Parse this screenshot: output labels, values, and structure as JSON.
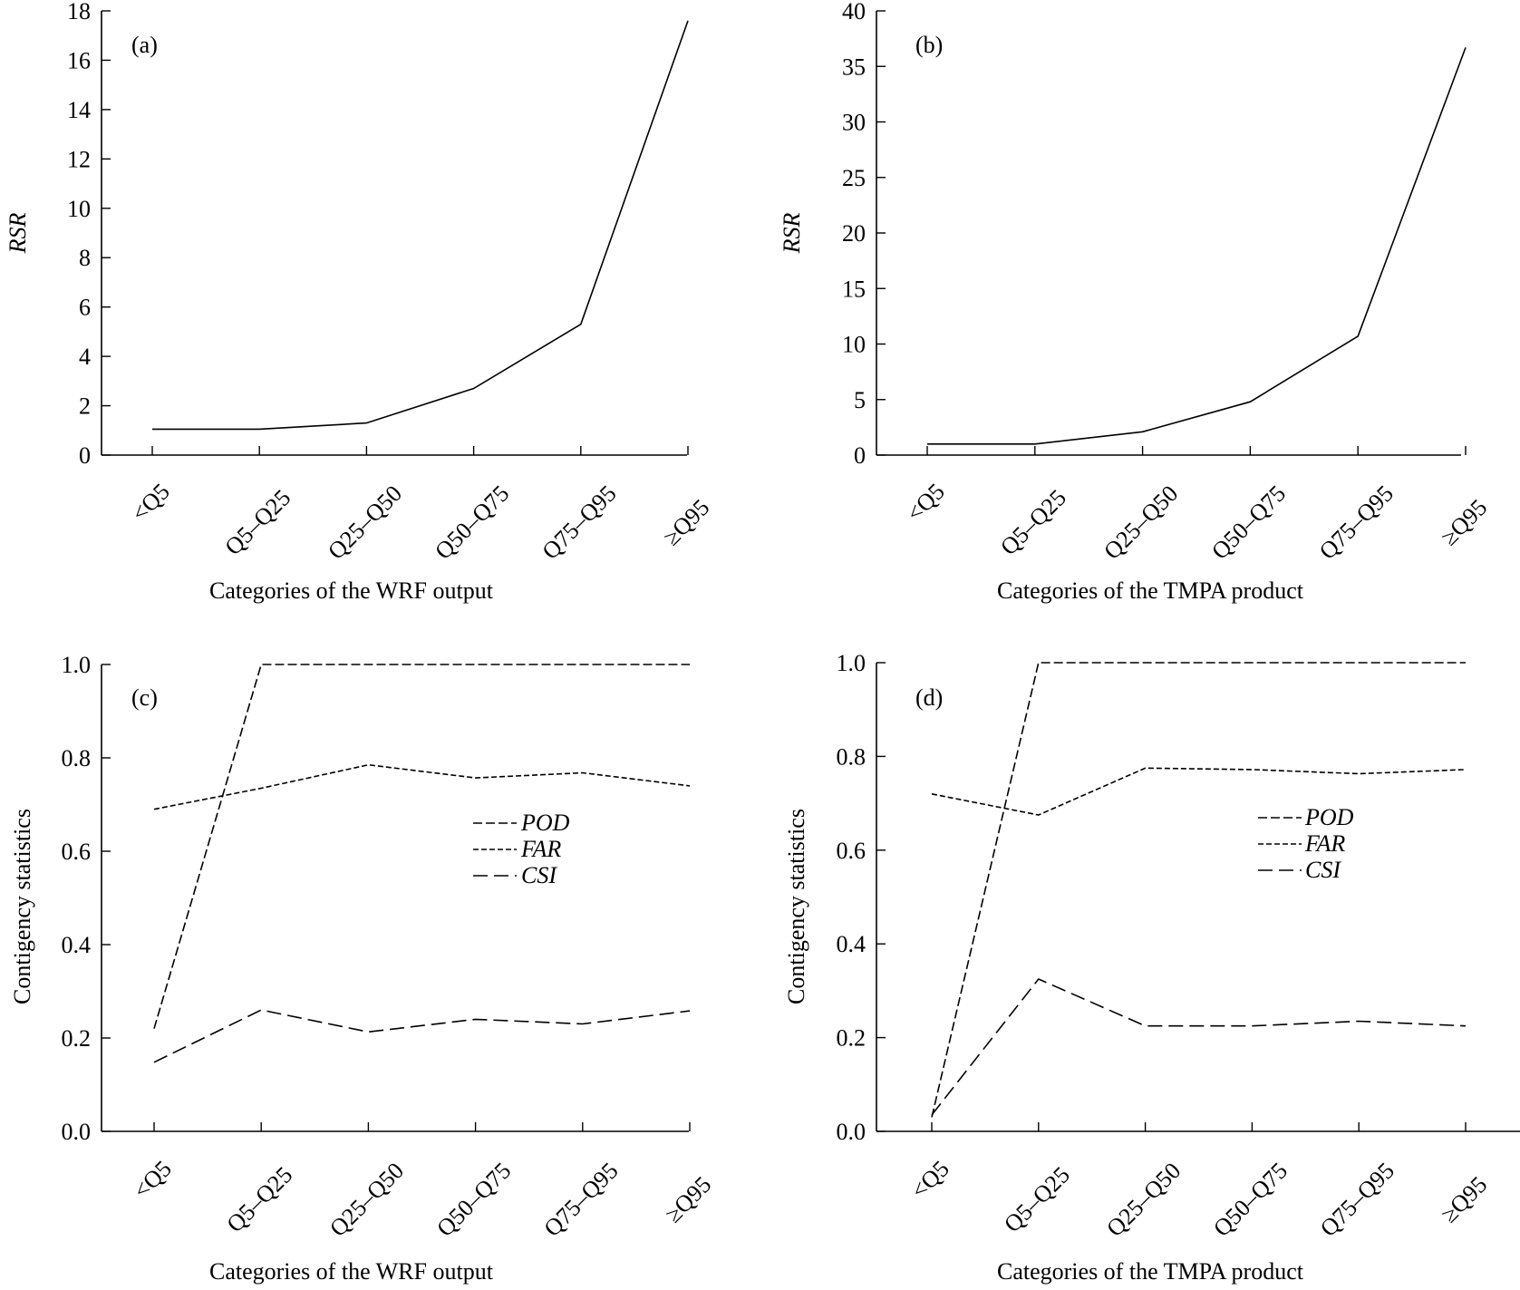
{
  "chart_data": [
    {
      "panel_label": "(a)",
      "type": "line",
      "categories": [
        "<Q5",
        "Q5–Q25",
        "Q25–Q50",
        "Q50–Q75",
        "Q75–Q95",
        "≥Q95"
      ],
      "xlabel": "Categories of the WRF output",
      "ylabel": "RSR",
      "ylim": [
        0,
        18
      ],
      "yticks": [
        "0",
        "2",
        "4",
        "6",
        "8",
        "10",
        "12",
        "14",
        "16",
        "18"
      ],
      "series": [
        {
          "values": [
            1.05,
            1.05,
            1.3,
            2.7,
            5.3,
            17.6
          ],
          "dash": "solid"
        }
      ]
    },
    {
      "panel_label": "(b)",
      "type": "line",
      "categories": [
        "<Q5",
        "Q5–Q25",
        "Q25–Q50",
        "Q50–Q75",
        "Q75–Q95",
        "≥Q95"
      ],
      "xlabel": "Categories of the TMPA product",
      "ylabel": "RSR",
      "ylim": [
        0,
        40
      ],
      "yticks": [
        "0",
        "5",
        "10",
        "15",
        "20",
        "25",
        "30",
        "35",
        "40"
      ],
      "series": [
        {
          "values": [
            1.0,
            1.0,
            2.1,
            4.8,
            10.7,
            36.7
          ],
          "dash": "solid"
        }
      ]
    },
    {
      "panel_label": "(c)",
      "type": "line",
      "categories": [
        "<Q5",
        "Q5–Q25",
        "Q25–Q50",
        "Q50–Q75",
        "Q75–Q95",
        "≥Q95"
      ],
      "xlabel": "Categories of the WRF output",
      "ylabel": "Contigency statistics",
      "ylim": [
        0,
        1
      ],
      "yticks": [
        "0.0",
        "0.2",
        "0.4",
        "0.6",
        "0.8",
        "1.0"
      ],
      "series": [
        {
          "name": "POD",
          "values": [
            0.22,
            1.0,
            1.0,
            1.0,
            1.0,
            1.0
          ],
          "dash": "medium"
        },
        {
          "name": "FAR",
          "values": [
            0.69,
            0.735,
            0.785,
            0.757,
            0.768,
            0.74
          ],
          "dash": "short"
        },
        {
          "name": "CSI",
          "values": [
            0.148,
            0.26,
            0.213,
            0.24,
            0.23,
            0.258
          ],
          "dash": "long"
        }
      ]
    },
    {
      "panel_label": "(d)",
      "type": "line",
      "categories": [
        "<Q5",
        "Q5–Q25",
        "Q25–Q50",
        "Q50–Q75",
        "Q75–Q95",
        "≥Q95"
      ],
      "xlabel": "Categories of the TMPA product",
      "ylabel": "Contigency statistics",
      "ylim": [
        0,
        1
      ],
      "yticks": [
        "0.0",
        "0.2",
        "0.4",
        "0.6",
        "0.8",
        "1.0"
      ],
      "series": [
        {
          "name": "POD",
          "values": [
            0.03,
            1.0,
            1.0,
            1.0,
            1.0,
            1.0
          ],
          "dash": "medium"
        },
        {
          "name": "FAR",
          "values": [
            0.72,
            0.675,
            0.775,
            0.772,
            0.763,
            0.772
          ],
          "dash": "short"
        },
        {
          "name": "CSI",
          "values": [
            0.035,
            0.325,
            0.225,
            0.225,
            0.235,
            0.225
          ],
          "dash": "long"
        }
      ]
    }
  ]
}
